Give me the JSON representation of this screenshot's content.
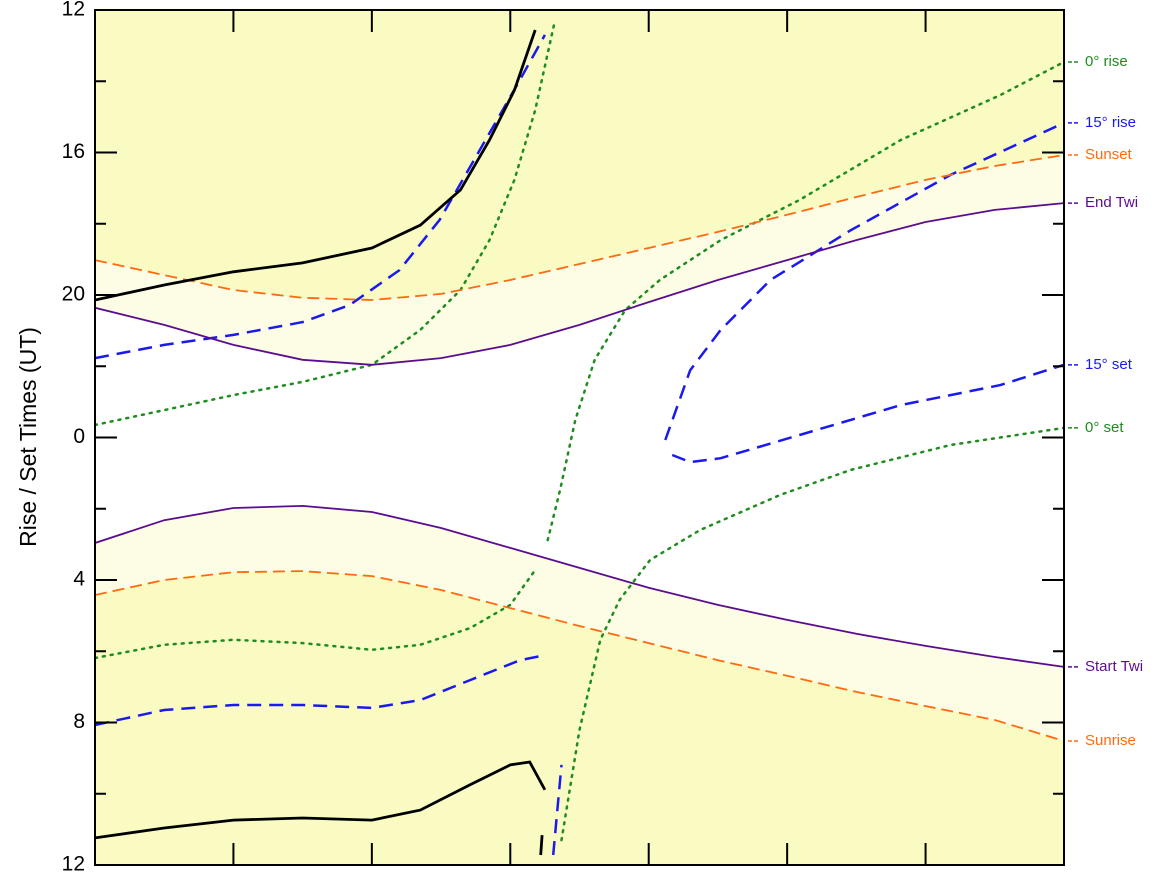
{
  "chart_data": {
    "type": "line",
    "y_label": "Rise / Set Times (UT)",
    "ylim": [
      36,
      12
    ],
    "yticks": [
      12,
      16,
      20,
      {
        "value": 24,
        "label": "0"
      },
      {
        "value": 28,
        "label": "4"
      },
      {
        "value": 32,
        "label": "8"
      },
      {
        "value": 36,
        "label": "12"
      }
    ],
    "yminor": [
      14,
      18,
      22,
      26,
      30,
      34
    ],
    "xlim": [
      0,
      7
    ],
    "xticks": [
      0,
      1,
      2,
      3,
      4,
      5,
      6,
      7
    ],
    "day_color": "#fafac3",
    "twilight_color": "#fdfde6",
    "night_color": "#ffffff",
    "series": [
      {
        "name": "0° rise",
        "color": "#1e8c1e",
        "style": "dotted",
        "x": [
          0,
          0.5,
          1,
          1.5,
          2,
          2.35,
          2.64,
          2.85,
          3.03,
          3.18,
          3.32,
          null,
          3.27,
          3.36,
          3.47,
          3.61,
          3.83,
          4.08,
          4.52,
          5.09,
          5.82,
          6.54,
          7
        ],
        "values": [
          23.65,
          23.23,
          22.81,
          22.44,
          21.96,
          20.98,
          19.86,
          18.46,
          16.77,
          14.81,
          12.34,
          null,
          26.88,
          25.47,
          23.51,
          21.82,
          20.42,
          19.58,
          18.46,
          17.33,
          15.65,
          14.39,
          13.46
        ]
      },
      {
        "name": "15° rise",
        "color": "#1a1aee",
        "style": "dashed",
        "x": [
          0,
          0.5,
          1,
          1.5,
          1.84,
          2.2,
          2.49,
          2.78,
          3.07,
          3.25,
          null,
          3.31,
          3.37,
          null,
          4.12,
          4.3,
          4.52,
          4.88,
          5.46,
          6.18,
          7
        ],
        "values": [
          21.77,
          21.4,
          21.12,
          20.76,
          20.28,
          19.3,
          17.89,
          15.93,
          13.96,
          12.7,
          null,
          35.72,
          33.19,
          null,
          24.07,
          22.11,
          20.98,
          19.58,
          18.18,
          16.63,
          15.17
        ]
      },
      {
        "name": "Sunset",
        "color": "#ff6a10",
        "style": "longdash",
        "x": [
          0,
          0.5,
          1,
          1.5,
          2,
          2.5,
          3,
          3.5,
          4,
          4.5,
          5,
          5.5,
          6,
          6.5,
          7
        ],
        "values": [
          19.02,
          19.44,
          19.86,
          20.08,
          20.14,
          19.97,
          19.58,
          19.13,
          18.68,
          18.23,
          17.75,
          17.25,
          16.77,
          16.38,
          16.07
        ]
      },
      {
        "name": "End Twi",
        "color": "#5c0d8f",
        "style": "solid",
        "x": [
          0,
          0.5,
          1,
          1.5,
          2,
          2.5,
          3,
          3.5,
          4,
          4.5,
          5,
          5.5,
          6,
          6.5,
          7
        ],
        "values": [
          20.36,
          20.84,
          21.4,
          21.82,
          21.96,
          21.77,
          21.4,
          20.84,
          20.2,
          19.58,
          19.02,
          18.46,
          17.95,
          17.61,
          17.42
        ]
      },
      {
        "name": "15° set",
        "color": "#1a1aee",
        "style": "dashed",
        "x": [
          0,
          0.5,
          1,
          1.5,
          2,
          2.35,
          2.71,
          3.07,
          3.25,
          null,
          4.17,
          4.3,
          4.52,
          5.09,
          5.82,
          6.54,
          7
        ],
        "values": [
          32.07,
          31.65,
          31.51,
          31.51,
          31.59,
          31.37,
          30.81,
          30.25,
          30.11,
          null,
          24.49,
          24.69,
          24.58,
          23.93,
          23.09,
          22.53,
          21.96
        ]
      },
      {
        "name": "0° set",
        "color": "#1e8c1e",
        "style": "dotted",
        "x": [
          0,
          0.5,
          1,
          1.5,
          2,
          2.35,
          2.71,
          3.0,
          3.18,
          null,
          3.37,
          3.5,
          3.65,
          3.79,
          4.01,
          4.37,
          4.95,
          5.46,
          6.18,
          7
        ],
        "values": [
          30.19,
          29.82,
          29.68,
          29.77,
          29.96,
          29.82,
          29.35,
          28.7,
          27.72,
          null,
          35.3,
          32.21,
          29.68,
          28.56,
          27.44,
          26.6,
          25.61,
          24.91,
          24.21,
          23.73
        ]
      },
      {
        "name": "Start Twi",
        "color": "#5c0d8f",
        "style": "solid",
        "x": [
          0,
          0.5,
          1,
          1.5,
          2,
          2.5,
          3,
          3.5,
          4,
          4.5,
          5,
          5.5,
          6,
          6.5,
          7
        ],
        "values": [
          26.96,
          26.32,
          25.98,
          25.92,
          26.09,
          26.54,
          27.1,
          27.66,
          28.22,
          28.7,
          29.12,
          29.51,
          29.85,
          30.16,
          30.44
        ]
      },
      {
        "name": "Sunrise",
        "color": "#ff6a10",
        "style": "longdash",
        "x": [
          0,
          0.5,
          1,
          1.5,
          2,
          2.5,
          3,
          3.5,
          4,
          4.5,
          5,
          5.5,
          6,
          6.5,
          7
        ],
        "values": [
          28.42,
          28.0,
          27.78,
          27.75,
          27.89,
          28.28,
          28.79,
          29.29,
          29.77,
          30.25,
          30.69,
          31.14,
          31.54,
          31.93,
          32.52
        ]
      },
      {
        "color": "#000000",
        "style": "thick",
        "x": [
          0,
          0.5,
          1,
          1.5,
          2,
          2.35,
          2.64,
          2.85,
          3.03,
          3.18,
          null,
          0,
          0.5,
          1,
          1.5,
          2,
          2.35,
          2.71,
          3.0,
          3.14,
          3.25,
          null,
          3.23,
          3.22
        ],
        "values": [
          20.14,
          19.72,
          19.35,
          19.1,
          18.68,
          18.04,
          17.05,
          15.65,
          14.25,
          12.56,
          null,
          35.24,
          34.96,
          34.74,
          34.68,
          34.74,
          34.46,
          33.75,
          33.19,
          33.11,
          33.89,
          null,
          35.16,
          35.72
        ]
      }
    ]
  }
}
